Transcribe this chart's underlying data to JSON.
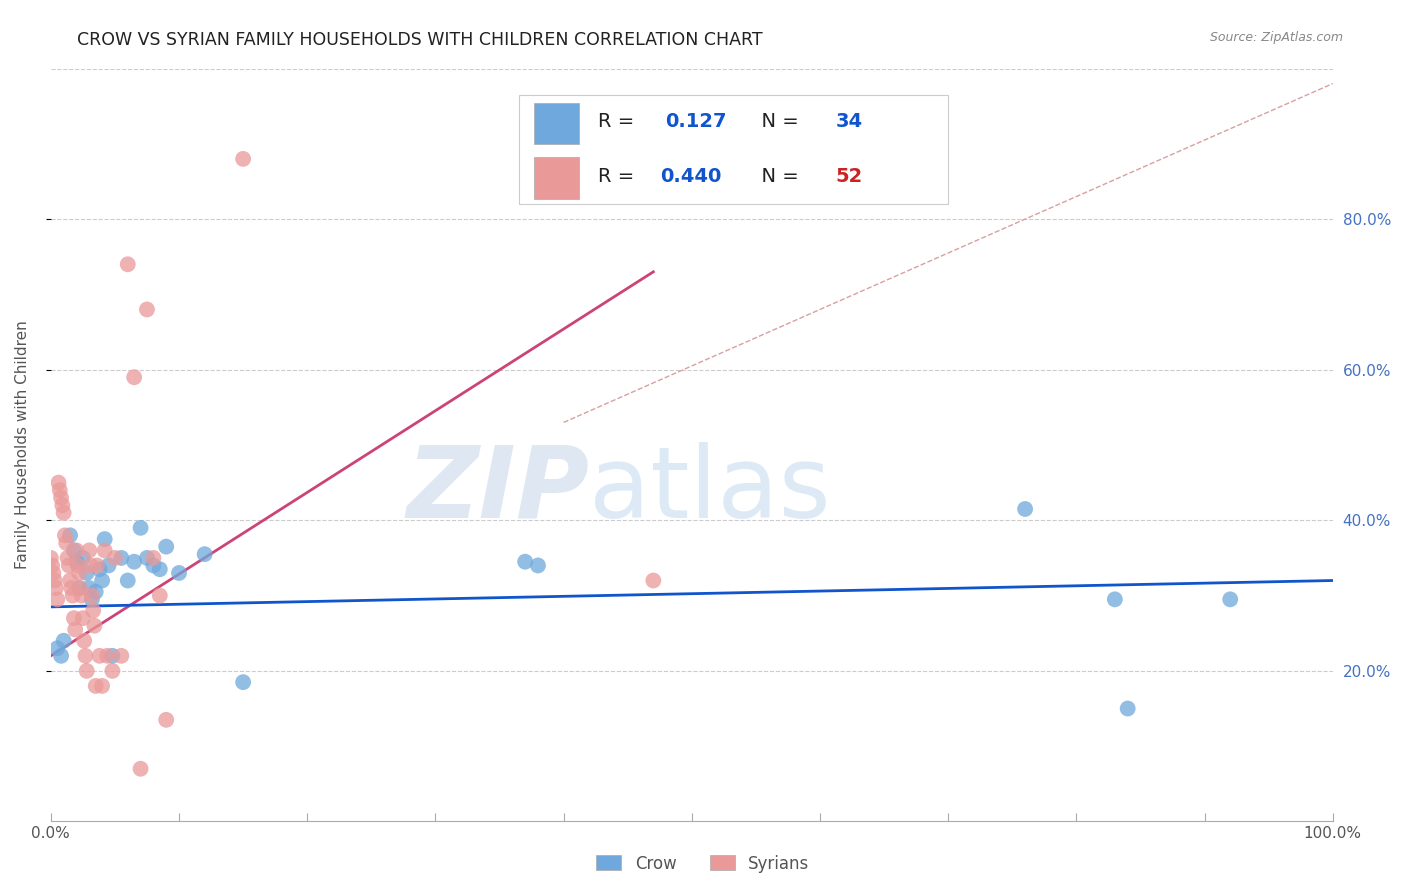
{
  "title": "CROW VS SYRIAN FAMILY HOUSEHOLDS WITH CHILDREN CORRELATION CHART",
  "source": "Source: ZipAtlas.com",
  "ylabel": "Family Households with Children",
  "xlabel": "",
  "watermark_zip": "ZIP",
  "watermark_atlas": "atlas",
  "xlim": [
    0,
    1.0
  ],
  "ylim": [
    0,
    1.0
  ],
  "xtick_labels": [
    "0.0%",
    "",
    "",
    "",
    "",
    "",
    "",
    "",
    "",
    "",
    "100.0%"
  ],
  "xtick_values": [
    0.0,
    0.1,
    0.2,
    0.3,
    0.4,
    0.5,
    0.6,
    0.7,
    0.8,
    0.9,
    1.0
  ],
  "ytick_labels": [
    "20.0%",
    "40.0%",
    "60.0%",
    "80.0%"
  ],
  "ytick_values": [
    0.2,
    0.4,
    0.6,
    0.8
  ],
  "crow_color": "#6fa8dc",
  "syrian_color": "#ea9999",
  "crow_line_color": "#1155cc",
  "syrian_line_color": "#cc4477",
  "diag_line_color": "#d8a0a0",
  "crow_R": "0.127",
  "crow_N": "34",
  "syrian_R": "0.440",
  "syrian_N": "52",
  "crow_scatter_x": [
    0.005,
    0.008,
    0.01,
    0.015,
    0.018,
    0.02,
    0.022,
    0.025,
    0.028,
    0.03,
    0.032,
    0.035,
    0.038,
    0.04,
    0.042,
    0.045,
    0.048,
    0.055,
    0.06,
    0.065,
    0.07,
    0.075,
    0.08,
    0.085,
    0.09,
    0.1,
    0.12,
    0.15,
    0.37,
    0.38,
    0.76,
    0.83,
    0.84,
    0.92
  ],
  "crow_scatter_y": [
    0.23,
    0.22,
    0.24,
    0.38,
    0.36,
    0.345,
    0.31,
    0.35,
    0.33,
    0.31,
    0.295,
    0.305,
    0.335,
    0.32,
    0.375,
    0.34,
    0.22,
    0.35,
    0.32,
    0.345,
    0.39,
    0.35,
    0.34,
    0.335,
    0.365,
    0.33,
    0.355,
    0.185,
    0.345,
    0.34,
    0.415,
    0.295,
    0.15,
    0.295
  ],
  "syrian_scatter_x": [
    0.0,
    0.001,
    0.002,
    0.003,
    0.004,
    0.005,
    0.006,
    0.007,
    0.008,
    0.009,
    0.01,
    0.011,
    0.012,
    0.013,
    0.014,
    0.015,
    0.016,
    0.017,
    0.018,
    0.019,
    0.02,
    0.021,
    0.022,
    0.023,
    0.024,
    0.025,
    0.026,
    0.027,
    0.028,
    0.03,
    0.031,
    0.032,
    0.033,
    0.034,
    0.035,
    0.036,
    0.038,
    0.04,
    0.042,
    0.044,
    0.048,
    0.05,
    0.055,
    0.06,
    0.065,
    0.07,
    0.075,
    0.08,
    0.085,
    0.09,
    0.15,
    0.47
  ],
  "syrian_scatter_y": [
    0.35,
    0.34,
    0.33,
    0.32,
    0.31,
    0.295,
    0.45,
    0.44,
    0.43,
    0.42,
    0.41,
    0.38,
    0.37,
    0.35,
    0.34,
    0.32,
    0.31,
    0.3,
    0.27,
    0.255,
    0.36,
    0.34,
    0.33,
    0.31,
    0.3,
    0.27,
    0.24,
    0.22,
    0.2,
    0.36,
    0.34,
    0.3,
    0.28,
    0.26,
    0.18,
    0.34,
    0.22,
    0.18,
    0.36,
    0.22,
    0.2,
    0.35,
    0.22,
    0.74,
    0.59,
    0.07,
    0.68,
    0.35,
    0.3,
    0.135,
    0.88,
    0.32
  ],
  "crow_line_x": [
    0.0,
    1.0
  ],
  "crow_line_y": [
    0.285,
    0.32
  ],
  "syrian_line_x": [
    0.0,
    0.47
  ],
  "syrian_line_y": [
    0.22,
    0.73
  ],
  "diag_line_x": [
    0.4,
    1.0
  ],
  "diag_line_y": [
    0.53,
    0.98
  ],
  "background_color": "#ffffff",
  "grid_color": "#cccccc",
  "legend_crow_label": "R =  0.127   N = 34",
  "legend_syrian_label": "R = 0.440   N = 52"
}
